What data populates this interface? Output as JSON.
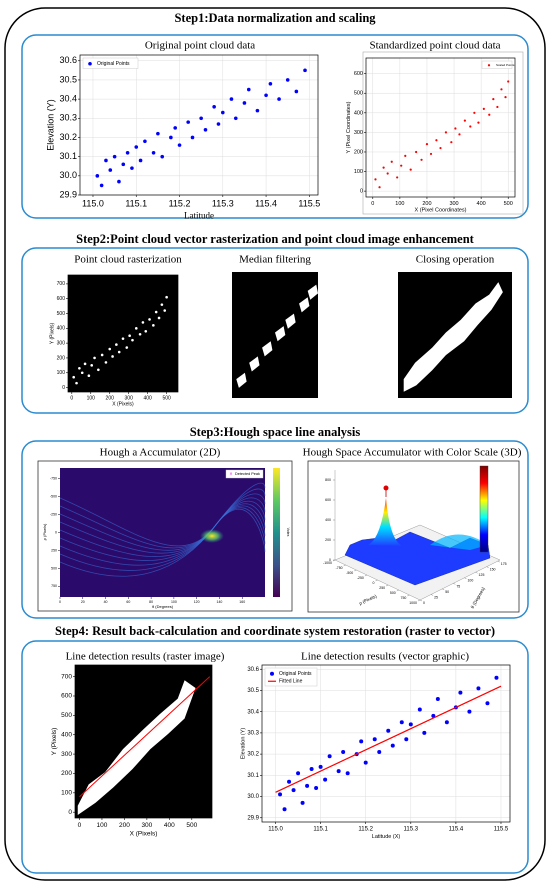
{
  "steps": [
    {
      "title": "Step1:Data normalization and scaling",
      "panels": [
        {
          "title": "Original point cloud data",
          "chart": {
            "type": "scatter",
            "xlabel": "Latitude",
            "ylabel": "Elevation (Y)",
            "grid": true,
            "legend": "upper left",
            "xlim": [
              114.97,
              115.52
            ],
            "ylim": [
              29.9,
              30.63
            ],
            "xticks": [
              {
                "value": 115,
                "label": "115.0"
              },
              115.1,
              115.2,
              115.3,
              115.4,
              115.5
            ],
            "yticks": [
              29.9,
              {
                "value": 30,
                "label": "30.0"
              },
              30.1,
              30.2,
              30.3,
              30.4,
              30.5,
              30.6
            ],
            "series": [
              {
                "name": "Original Points",
                "color": "#0000ff",
                "x": [
                  115.01,
                  115.02,
                  115.03,
                  115.04,
                  115.05,
                  115.06,
                  115.07,
                  115.08,
                  115.09,
                  115.1,
                  115.11,
                  115.12,
                  115.14,
                  115.15,
                  115.16,
                  115.18,
                  115.19,
                  115.2,
                  115.22,
                  115.23,
                  115.25,
                  115.26,
                  115.28,
                  115.29,
                  115.3,
                  115.32,
                  115.33,
                  115.35,
                  115.36,
                  115.38,
                  115.4,
                  115.41,
                  115.43,
                  115.45,
                  115.47,
                  115.49
                ],
                "y": [
                  30.0,
                  29.95,
                  30.08,
                  30.03,
                  30.1,
                  29.97,
                  30.06,
                  30.12,
                  30.04,
                  30.15,
                  30.08,
                  30.18,
                  30.12,
                  30.22,
                  30.1,
                  30.2,
                  30.25,
                  30.16,
                  30.28,
                  30.2,
                  30.3,
                  30.24,
                  30.36,
                  30.27,
                  30.33,
                  30.4,
                  30.3,
                  30.38,
                  30.45,
                  30.34,
                  30.42,
                  30.48,
                  30.4,
                  30.5,
                  30.44,
                  30.55
                ]
              }
            ]
          }
        },
        {
          "title": "Standardized point cloud data",
          "chart": {
            "type": "scatter",
            "xlabel": "X (Pixel Coordinates)",
            "ylabel": "Y (Pixel Coordinates)",
            "grid": true,
            "legend": "upper right",
            "xlim": [
              -25,
              525
            ],
            "ylim": [
              -30,
              680
            ],
            "xticks": [
              0,
              100,
              200,
              300,
              400,
              500
            ],
            "yticks": [
              0,
              100,
              200,
              300,
              400,
              500,
              600
            ],
            "series": [
              {
                "name": "Scaled Points",
                "color": "#ff0000",
                "x": [
                  10,
                  25,
                  40,
                  55,
                  70,
                  90,
                  105,
                  120,
                  140,
                  160,
                  180,
                  200,
                  215,
                  235,
                  250,
                  270,
                  290,
                  305,
                  320,
                  340,
                  360,
                  375,
                  390,
                  410,
                  430,
                  445,
                  460,
                  475,
                  490,
                  500
                ],
                "y": [
                  60,
                  20,
                  120,
                  90,
                  150,
                  70,
                  130,
                  180,
                  110,
                  200,
                  160,
                  240,
                  190,
                  260,
                  220,
                  300,
                  250,
                  320,
                  290,
                  360,
                  330,
                  400,
                  350,
                  420,
                  390,
                  470,
                  430,
                  520,
                  480,
                  560
                ]
              }
            ]
          }
        }
      ]
    },
    {
      "title": "Step2:Point cloud vector rasterization and point cloud image enhancement",
      "panels": [
        {
          "title": "Point cloud rasterization",
          "chart": {
            "type": "scatter",
            "xlabel": "X (Pixels)",
            "ylabel": "Y (Pixels)",
            "background": "#000000",
            "xlim": [
              -20,
              560
            ],
            "ylim": [
              -30,
              760
            ],
            "xticks": [
              0,
              100,
              200,
              300,
              400,
              500
            ],
            "yticks": [
              0,
              100,
              200,
              300,
              400,
              500,
              600,
              700
            ],
            "series": [
              {
                "color": "#ffffff",
                "x": [
                  10,
                  25,
                  40,
                  55,
                  70,
                  90,
                  105,
                  120,
                  140,
                  160,
                  180,
                  200,
                  215,
                  235,
                  250,
                  270,
                  290,
                  305,
                  320,
                  340,
                  360,
                  375,
                  390,
                  410,
                  430,
                  445,
                  460,
                  475,
                  490,
                  500
                ],
                "y": [
                  70,
                  30,
                  130,
                  100,
                  160,
                  80,
                  150,
                  200,
                  120,
                  220,
                  170,
                  260,
                  210,
                  290,
                  240,
                  330,
                  270,
                  350,
                  320,
                  400,
                  360,
                  440,
                  380,
                  460,
                  420,
                  510,
                  470,
                  560,
                  520,
                  610
                ]
              }
            ]
          }
        },
        {
          "title": "Median filtering"
        },
        {
          "title": "Closing operation"
        }
      ]
    },
    {
      "title": "Step3:Hough space line analysis",
      "panels": [
        {
          "title": "Hough a Accumulator (2D)",
          "legend": "Detected Peak",
          "xlabel": "θ (Degrees)",
          "ylabel": "ρ (Pixels)",
          "colorbar_label": "Votes",
          "xlim": [
            0,
            180
          ],
          "ylim": [
            -900,
            900
          ],
          "xticks": [
            0,
            20,
            40,
            60,
            80,
            100,
            120,
            140,
            160
          ],
          "yticks": [
            -750,
            -500,
            -250,
            0,
            250,
            500,
            750
          ]
        },
        {
          "title": "Hough Space Accumulator with Color Scale (3D)",
          "xlabel": "ρ (Pixels)",
          "ylabel": "θ (Degrees)",
          "xlim": [
            -1000,
            1000
          ],
          "ylim": [
            0,
            180
          ],
          "zlim": [
            0,
            900
          ],
          "xticks": [
            -1000,
            -750,
            -500,
            -250,
            0,
            250,
            500,
            750,
            1000
          ],
          "yticks": [
            0,
            25,
            50,
            75,
            100,
            125,
            150,
            175
          ],
          "zticks": [
            0,
            200,
            400,
            600,
            800
          ]
        }
      ]
    },
    {
      "title": "Step4: Result back-calculation and coordinate system restoration (raster to vector)",
      "panels": [
        {
          "title": "Line detection results (raster image)",
          "chart": {
            "type": "line",
            "xlabel": "X (Pixels)",
            "ylabel": "Y (Pixels)",
            "background": "#000000",
            "xlim": [
              -20,
              590
            ],
            "ylim": [
              -30,
              760
            ],
            "xticks": [
              0,
              100,
              200,
              300,
              400,
              500
            ],
            "yticks": [
              0,
              100,
              200,
              300,
              400,
              500,
              600,
              700
            ],
            "series": [
              {
                "type": "line",
                "color": "#ff0000",
                "x": [
                  0,
                  580
                ],
                "y": [
                  80,
                  700
                ]
              }
            ]
          }
        },
        {
          "title": "Line detection results (vector graphic)",
          "chart": {
            "type": "scatter",
            "xlabel": "Latitude (X)",
            "ylabel": "Elevation (Y)",
            "grid": true,
            "legend": "upper left",
            "xlim": [
              114.97,
              115.52
            ],
            "ylim": [
              29.88,
              30.62
            ],
            "xticks": [
              {
                "value": 115,
                "label": "115.0"
              },
              115.1,
              115.2,
              115.3,
              115.4,
              115.5
            ],
            "yticks": [
              29.9,
              {
                "value": 30,
                "label": "30.0"
              },
              30.1,
              30.2,
              30.3,
              30.4,
              30.5,
              30.6
            ],
            "series": [
              {
                "name": "Original Points",
                "color": "#0000ff",
                "x": [
                  115.01,
                  115.02,
                  115.03,
                  115.04,
                  115.05,
                  115.06,
                  115.07,
                  115.08,
                  115.09,
                  115.1,
                  115.11,
                  115.12,
                  115.14,
                  115.15,
                  115.16,
                  115.18,
                  115.19,
                  115.2,
                  115.22,
                  115.23,
                  115.25,
                  115.26,
                  115.28,
                  115.29,
                  115.3,
                  115.32,
                  115.33,
                  115.35,
                  115.36,
                  115.38,
                  115.4,
                  115.41,
                  115.43,
                  115.45,
                  115.47,
                  115.49
                ],
                "y": [
                  30.01,
                  29.94,
                  30.07,
                  30.03,
                  30.11,
                  29.97,
                  30.05,
                  30.13,
                  30.04,
                  30.14,
                  30.08,
                  30.19,
                  30.12,
                  30.21,
                  30.11,
                  30.2,
                  30.26,
                  30.16,
                  30.27,
                  30.21,
                  30.31,
                  30.24,
                  30.35,
                  30.27,
                  30.34,
                  30.41,
                  30.3,
                  30.38,
                  30.46,
                  30.35,
                  30.42,
                  30.49,
                  30.4,
                  30.51,
                  30.44,
                  30.56
                ]
              },
              {
                "name": "Fitted Line",
                "type": "line",
                "color": "#ff0000",
                "x": [
                  115.0,
                  115.5
                ],
                "y": [
                  30.02,
                  30.52
                ]
              }
            ]
          }
        }
      ]
    }
  ]
}
